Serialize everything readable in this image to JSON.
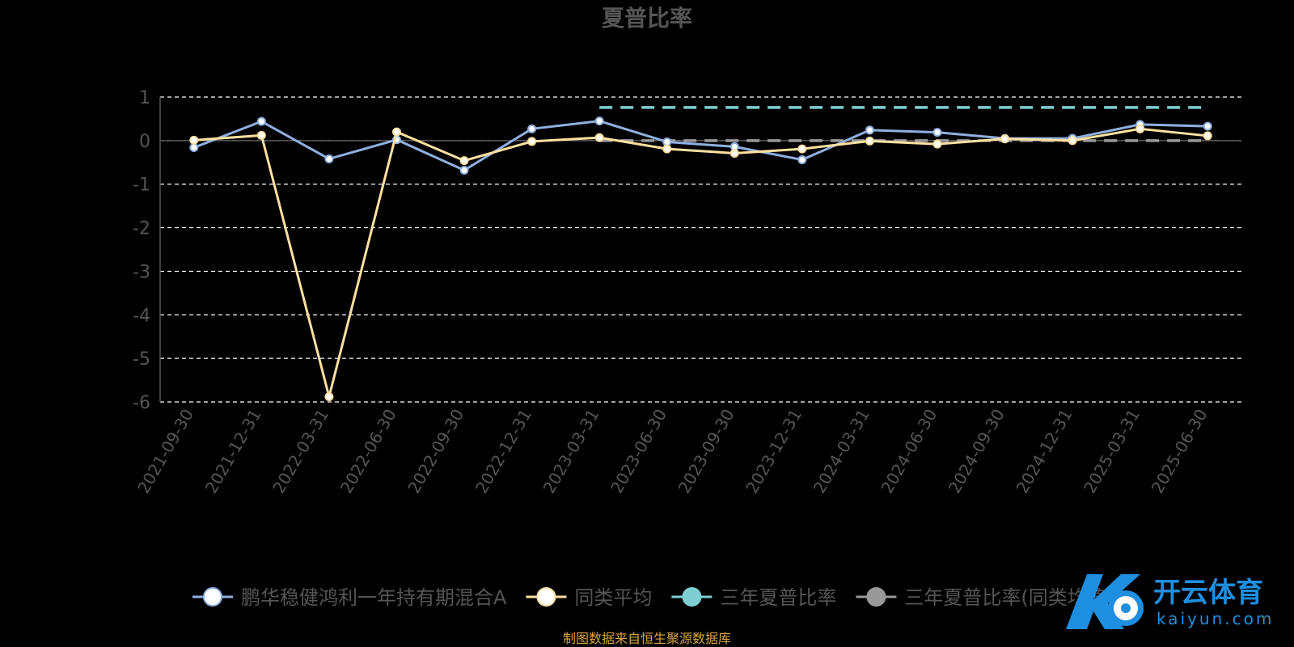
{
  "chart_data": {
    "type": "line",
    "title": "夏普比率",
    "categories": [
      "2021-09-30",
      "2021-12-31",
      "2022-03-31",
      "2022-06-30",
      "2022-09-30",
      "2022-12-31",
      "2023-03-31",
      "2023-06-30",
      "2023-09-30",
      "2023-12-31",
      "2024-03-31",
      "2024-06-30",
      "2024-09-30",
      "2024-12-31",
      "2025-03-31",
      "2025-06-30"
    ],
    "yticks": [
      "1",
      "0",
      "-1",
      "-2",
      "-3",
      "-4",
      "-5",
      "-6"
    ],
    "ylim": [
      -6,
      1
    ],
    "grid": true,
    "legend_position": "bottom",
    "series": [
      {
        "name": "鹏华稳健鸿利一年持有期混合A",
        "color": "#8fb0e0",
        "values": [
          -0.16,
          0.44,
          -0.42,
          0.02,
          -0.68,
          0.27,
          0.45,
          -0.03,
          -0.14,
          -0.44,
          0.24,
          0.19,
          0.05,
          0.05,
          0.37,
          0.33
        ]
      },
      {
        "name": "同类平均",
        "color": "#ffe0a0",
        "values": [
          0.01,
          0.12,
          -5.88,
          0.2,
          -0.46,
          -0.02,
          0.07,
          -0.19,
          -0.29,
          -0.19,
          -0.01,
          -0.08,
          0.04,
          0.0,
          0.27,
          0.11
        ]
      },
      {
        "name": "三年夏普比率",
        "color": "#7ecfd1",
        "value": 0.76,
        "from": "2023-03-31",
        "to": "2025-06-30",
        "dashed": true
      },
      {
        "name": "三年夏普比率(同类均值)",
        "color": "#999999",
        "value": 0.0,
        "from": "2023-03-31",
        "to": "2025-06-30",
        "dashed": true
      }
    ]
  },
  "footer": {
    "source": "制图数据来自恒生聚源数据库"
  },
  "watermark": {
    "brand": "开云体育",
    "domain": "kaiyun.com"
  }
}
